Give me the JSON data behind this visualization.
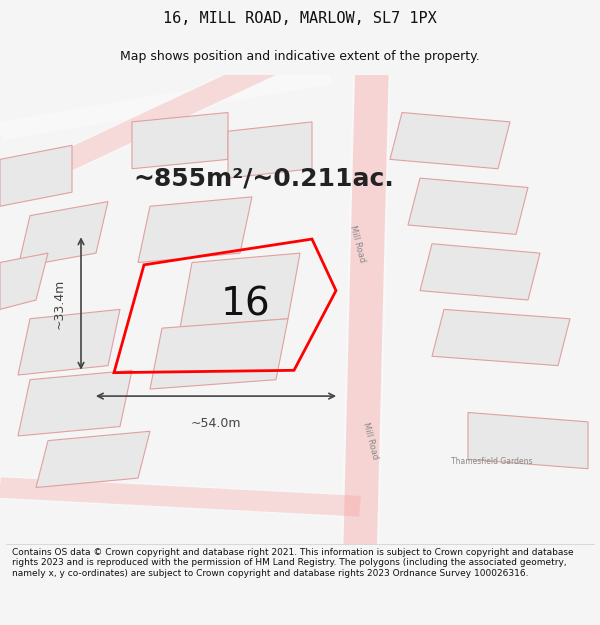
{
  "title": "16, MILL ROAD, MARLOW, SL7 1PX",
  "subtitle": "Map shows position and indicative extent of the property.",
  "area_text": "~855m²/~0.211ac.",
  "label_16": "16",
  "dim_width": "~54.0m",
  "dim_height": "~33.4m",
  "footer": "Contains OS data © Crown copyright and database right 2021. This information is subject to Crown copyright and database rights 2023 and is reproduced with the permission of HM Land Registry. The polygons (including the associated geometry, namely x, y co-ordinates) are subject to Crown copyright and database rights 2023 Ordnance Survey 100026316.",
  "bg_color": "#f5f5f5",
  "map_bg": "#ffffff",
  "road_color": "#f5a0a0",
  "building_color": "#e8e8e8",
  "building_edge": "#e0a0a0",
  "highlight_color": "#ff0000",
  "dim_color": "#444444",
  "road_label_color": "#888888",
  "title_fontsize": 11,
  "subtitle_fontsize": 9,
  "area_fontsize": 18,
  "label_fontsize": 28,
  "footer_fontsize": 6.5
}
